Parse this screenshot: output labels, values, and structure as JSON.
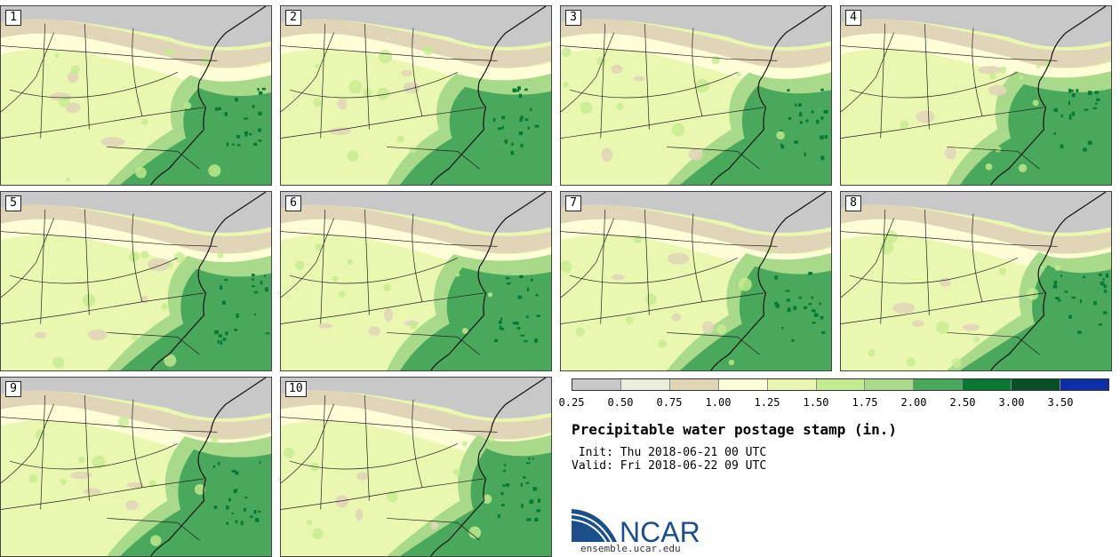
{
  "panels": [
    {
      "label": "1"
    },
    {
      "label": "2"
    },
    {
      "label": "3"
    },
    {
      "label": "4"
    },
    {
      "label": "5"
    },
    {
      "label": "6"
    },
    {
      "label": "7"
    },
    {
      "label": "8"
    },
    {
      "label": "9"
    },
    {
      "label": "10"
    }
  ],
  "legend": {
    "ticks": [
      "0.25",
      "0.50",
      "0.75",
      "1.00",
      "1.25",
      "1.50",
      "1.75",
      "2.00",
      "2.50",
      "3.00",
      "3.50"
    ],
    "colors": [
      "#e0e0e0",
      "#c8c8c8",
      "#ededdc",
      "#e1d5b8",
      "#fdfdd8",
      "#e9f7b0",
      "#c5eb90",
      "#a9d98a",
      "#49a85b",
      "#087935",
      "#064f26",
      "#0a2fa8"
    ]
  },
  "title": "Precipitable water postage stamp (in.)",
  "init": " Init: Thu 2018-06-21 00 UTC",
  "valid": "Valid: Fri 2018-06-22 09 UTC",
  "logo": {
    "text": "NCAR",
    "url": "ensemble.ucar.edu",
    "brand_color": "#1a4f8c"
  }
}
